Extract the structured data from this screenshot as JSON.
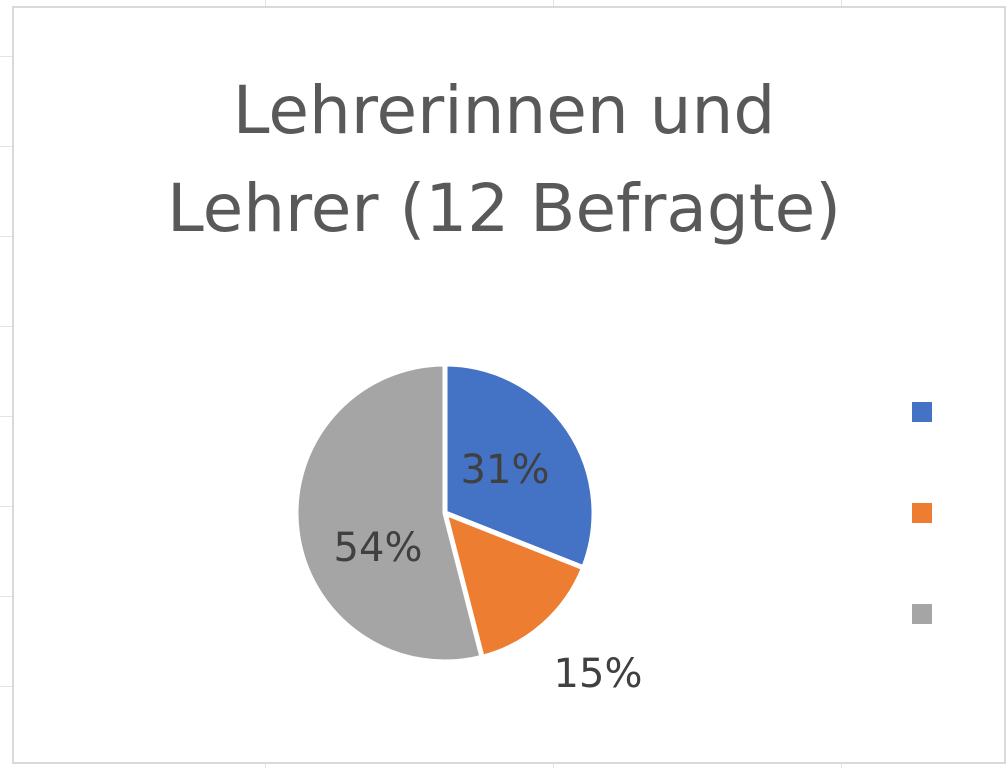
{
  "chart_data": {
    "type": "pie",
    "title": "Lehrerinnen und\nLehrer (12 Befragte)",
    "values": [
      31,
      15,
      54
    ],
    "data_labels": [
      "31%",
      "15%",
      "54%"
    ],
    "colors": [
      "#4472C4",
      "#ED7D31",
      "#A5A5A5"
    ],
    "legend": {
      "position": "right",
      "entries": [
        "",
        "",
        ""
      ]
    }
  }
}
